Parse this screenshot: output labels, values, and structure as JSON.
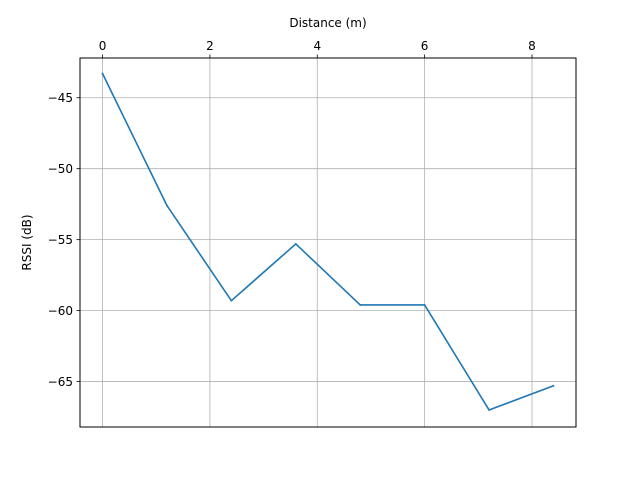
{
  "chart_data": {
    "type": "line",
    "title": "",
    "xlabel": "Distance (m)",
    "ylabel": "RSSI (dB)",
    "x_axis_position": "top",
    "grid": true,
    "xlim": [
      -0.42,
      8.82
    ],
    "ylim": [
      -68.2,
      -42.2
    ],
    "x_ticks": [
      {
        "value": 0,
        "label": "0"
      },
      {
        "value": 2,
        "label": "2"
      },
      {
        "value": 4,
        "label": "4"
      },
      {
        "value": 6,
        "label": "6"
      },
      {
        "value": 8,
        "label": "8"
      }
    ],
    "y_ticks": [
      {
        "value": -45,
        "label": "−45"
      },
      {
        "value": -50,
        "label": "−50"
      },
      {
        "value": -55,
        "label": "−55"
      },
      {
        "value": -60,
        "label": "−60"
      },
      {
        "value": -65,
        "label": "−65"
      }
    ],
    "series": [
      {
        "color": "#1f77b4",
        "x": [
          0,
          1.2,
          2.4,
          3.6,
          4.8,
          6.0,
          7.2,
          8.4
        ],
        "y": [
          -43.3,
          -52.6,
          -59.3,
          -55.3,
          -59.6,
          -59.6,
          -67.0,
          -65.3
        ]
      }
    ]
  }
}
